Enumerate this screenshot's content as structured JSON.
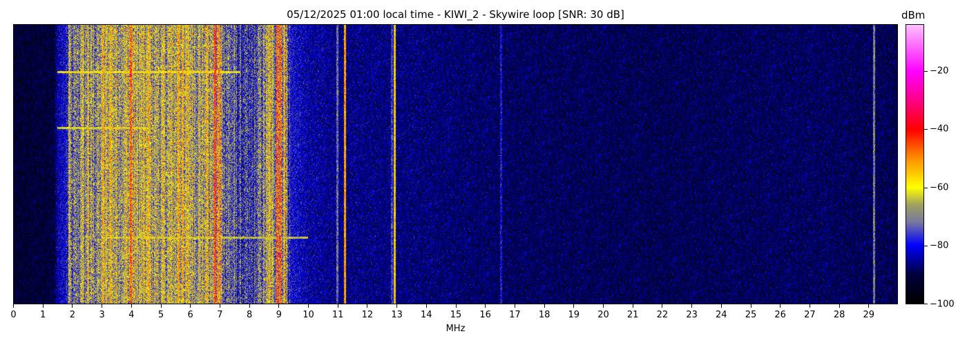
{
  "chart_data": {
    "type": "heatmap",
    "title": "05/12/2025 01:00 local time - KIWI_2 - Skywire loop [SNR: 30 dB]",
    "xlabel": "MHz",
    "ylabel": "",
    "xlim": [
      0,
      30
    ],
    "x_ticks": [
      "0",
      "1",
      "2",
      "3",
      "4",
      "5",
      "6",
      "7",
      "8",
      "9",
      "10",
      "11",
      "12",
      "13",
      "14",
      "15",
      "16",
      "17",
      "18",
      "19",
      "20",
      "21",
      "22",
      "23",
      "24",
      "25",
      "26",
      "27",
      "28",
      "29"
    ],
    "colorbar": {
      "label": "dBm",
      "range": [
        -100,
        -4
      ],
      "ticks": [
        "−20",
        "−40",
        "−60",
        "−80",
        "−100"
      ],
      "tick_values": [
        -20,
        -40,
        -60,
        -80,
        -100
      ]
    },
    "colormap": [
      [
        -100,
        "#000000"
      ],
      [
        -90,
        "#00003c"
      ],
      [
        -80,
        "#0000ff"
      ],
      [
        -72,
        "#7878a0"
      ],
      [
        -66,
        "#a0a060"
      ],
      [
        -60,
        "#ffff00"
      ],
      [
        -50,
        "#ff9000"
      ],
      [
        -40,
        "#ff0000"
      ],
      [
        -28,
        "#ff00a0"
      ],
      [
        -20,
        "#ff00ff"
      ],
      [
        -4,
        "#ffc0ff"
      ]
    ],
    "spectrum_profile_dbm": [
      [
        0,
        -93
      ],
      [
        1.4,
        -92
      ],
      [
        1.5,
        -84
      ],
      [
        1.8,
        -80
      ],
      [
        2.2,
        -70
      ],
      [
        3.0,
        -68
      ],
      [
        3.2,
        -64
      ],
      [
        4.5,
        -65
      ],
      [
        5.0,
        -66
      ],
      [
        6.0,
        -64
      ],
      [
        7.0,
        -68
      ],
      [
        7.5,
        -75
      ],
      [
        8.0,
        -80
      ],
      [
        8.7,
        -66
      ],
      [
        9.3,
        -70
      ],
      [
        9.4,
        -80
      ],
      [
        10.0,
        -84
      ],
      [
        11.0,
        -86
      ],
      [
        13.5,
        -87
      ],
      [
        17,
        -89
      ],
      [
        22,
        -90
      ],
      [
        27,
        -89
      ],
      [
        30,
        -90
      ]
    ],
    "carriers_mhz_dbm": [
      [
        1.9,
        -64
      ],
      [
        2.35,
        -62
      ],
      [
        2.55,
        -60
      ],
      [
        3.05,
        -56
      ],
      [
        3.3,
        -58
      ],
      [
        4.0,
        -46
      ],
      [
        4.6,
        -58
      ],
      [
        5.6,
        -54
      ],
      [
        5.75,
        -56
      ],
      [
        6.6,
        -58
      ],
      [
        6.85,
        -42
      ],
      [
        7.0,
        -50
      ],
      [
        8.7,
        -60
      ],
      [
        8.95,
        -46
      ],
      [
        9.05,
        -46
      ],
      [
        9.2,
        -56
      ],
      [
        11.0,
        -72
      ],
      [
        11.25,
        -52
      ],
      [
        12.85,
        -76
      ],
      [
        12.95,
        -58
      ],
      [
        16.55,
        -80
      ],
      [
        29.2,
        -70
      ]
    ],
    "time_events": [
      {
        "time_fraction": 0.17,
        "mhz": [
          1.5,
          7.7
        ],
        "dbm": -60
      },
      {
        "time_fraction": 0.37,
        "mhz": [
          1.5,
          4.5
        ],
        "dbm": -62
      },
      {
        "time_fraction": 0.76,
        "mhz": [
          3.0,
          10.0
        ],
        "dbm": -64
      }
    ]
  }
}
